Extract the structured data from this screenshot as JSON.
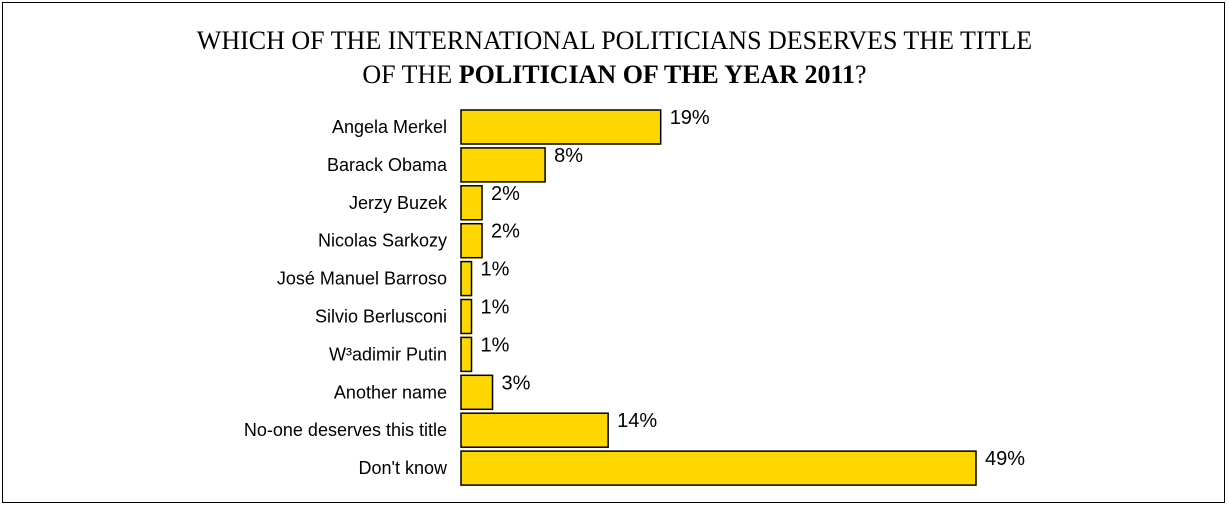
{
  "title": {
    "line1": "WHICH OF THE INTERNATIONAL POLITICIANS DESERVES THE TITLE",
    "line2_prefix": "OF THE ",
    "line2_bold": "POLITICIAN OF THE YEAR 2011",
    "line2_suffix": "?"
  },
  "colors": {
    "bar_fill": "#FFD700",
    "bar_stroke": "#000000"
  },
  "chart_data": {
    "type": "bar",
    "orientation": "horizontal",
    "title": "WHICH OF THE INTERNATIONAL POLITICIANS DESERVES THE TITLE OF THE POLITICIAN OF THE YEAR 2011?",
    "categories": [
      "Angela Merkel",
      "Barack Obama",
      "Jerzy Buzek",
      "Nicolas Sarkozy",
      "José Manuel Barroso",
      "Silvio Berlusconi",
      "W³adimir Putin",
      "Another name",
      "No-one deserves this title",
      "Don't know"
    ],
    "values": [
      19,
      8,
      2,
      2,
      1,
      1,
      1,
      3,
      14,
      49
    ],
    "value_labels": [
      "19%",
      "8%",
      "2%",
      "2%",
      "1%",
      "1%",
      "1%",
      "3%",
      "14%",
      "49%"
    ],
    "unit": "%",
    "xlim": [
      0,
      49
    ],
    "grid": false,
    "legend": "none"
  }
}
